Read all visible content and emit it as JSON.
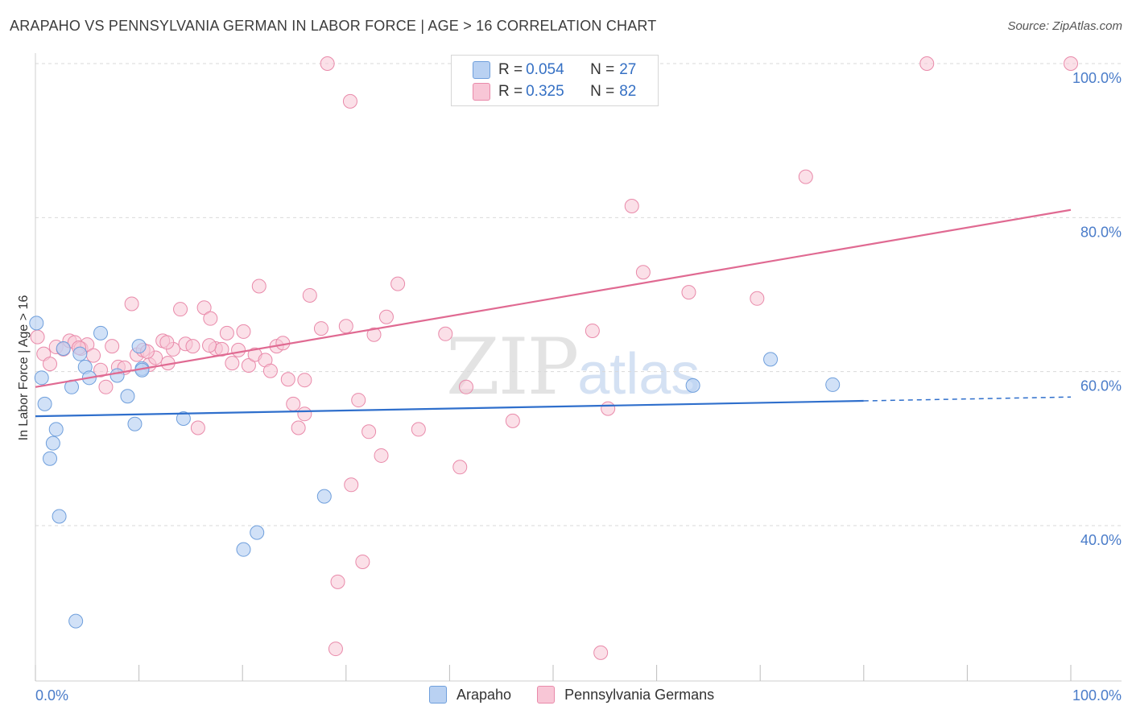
{
  "header": {
    "title": "ARAPAHO VS PENNSYLVANIA GERMAN IN LABOR FORCE | AGE > 16 CORRELATION CHART",
    "source": "Source: ZipAtlas.com"
  },
  "legend_box": {
    "rows": [
      {
        "r_label": "R = ",
        "r_value": "0.054",
        "n_label": "N = ",
        "n_value": "27"
      },
      {
        "r_label": "R = ",
        "r_value": "0.325",
        "n_label": "N = ",
        "n_value": "82"
      }
    ]
  },
  "watermark": {
    "zip": "ZIP",
    "atlas": "atlas"
  },
  "colors": {
    "arapaho_fill": "#b9d1f2",
    "arapaho_stroke": "#6f9fdc",
    "arapaho_line": "#2f6fcc",
    "pg_fill": "#f8c6d6",
    "pg_stroke": "#e98aaa",
    "pg_line": "#e06a92",
    "tick": "#4a7cc9",
    "grid": "#d9d9d9"
  },
  "chart_data": {
    "type": "scatter",
    "title": "ARAPAHO VS PENNSYLVANIA GERMAN IN LABOR FORCE | AGE > 16 CORRELATION CHART",
    "xlabel": "",
    "ylabel": "In Labor Force | Age > 16",
    "xlim": [
      0,
      100
    ],
    "ylim": [
      22,
      101
    ],
    "x_tick_labels": [
      "0.0%",
      "100.0%"
    ],
    "y_ticks": [
      40,
      60,
      80,
      100
    ],
    "y_tick_labels": [
      "40.0%",
      "60.0%",
      "80.0%",
      "100.0%"
    ],
    "grid": true,
    "legend_position": "bottom",
    "series": [
      {
        "name": "Arapaho",
        "r": 0.054,
        "n": 27,
        "trend": {
          "x0": 0,
          "y0": 54.2,
          "x1": 80,
          "y1": 56.2,
          "dashed_to_x": 100,
          "dashed_to_y": 56.7
        },
        "points": [
          [
            0.1,
            66.3
          ],
          [
            0.6,
            59.2
          ],
          [
            0.9,
            55.8
          ],
          [
            1.4,
            48.7
          ],
          [
            1.7,
            50.7
          ],
          [
            2.0,
            52.5
          ],
          [
            2.3,
            41.2
          ],
          [
            2.7,
            63.0
          ],
          [
            3.5,
            58.0
          ],
          [
            3.9,
            27.6
          ],
          [
            4.3,
            62.3
          ],
          [
            4.8,
            60.6
          ],
          [
            5.2,
            59.2
          ],
          [
            6.3,
            65.0
          ],
          [
            7.9,
            59.5
          ],
          [
            8.9,
            56.8
          ],
          [
            9.6,
            53.2
          ],
          [
            10.0,
            63.3
          ],
          [
            10.3,
            60.4
          ],
          [
            14.3,
            53.9
          ],
          [
            20.1,
            36.9
          ],
          [
            21.4,
            39.1
          ],
          [
            27.9,
            43.8
          ],
          [
            63.5,
            58.2
          ],
          [
            71.0,
            61.6
          ],
          [
            77.0,
            58.3
          ],
          [
            10.3,
            60.2
          ]
        ]
      },
      {
        "name": "Pennsylvania Germans",
        "r": 0.325,
        "n": 82,
        "trend": {
          "x0": 0,
          "y0": 58.0,
          "x1": 100,
          "y1": 81.0
        },
        "points": [
          [
            0.2,
            64.5
          ],
          [
            0.8,
            62.3
          ],
          [
            1.4,
            61.0
          ],
          [
            2.0,
            63.2
          ],
          [
            2.7,
            62.9
          ],
          [
            3.3,
            64.0
          ],
          [
            3.8,
            63.8
          ],
          [
            4.4,
            63.0
          ],
          [
            5.0,
            63.5
          ],
          [
            5.6,
            62.1
          ],
          [
            6.3,
            60.2
          ],
          [
            6.8,
            58.0
          ],
          [
            7.4,
            63.3
          ],
          [
            8.0,
            60.6
          ],
          [
            8.6,
            60.5
          ],
          [
            9.3,
            68.8
          ],
          [
            9.8,
            62.2
          ],
          [
            10.4,
            62.8
          ],
          [
            11.0,
            60.9
          ],
          [
            11.6,
            61.8
          ],
          [
            12.3,
            64.0
          ],
          [
            12.8,
            61.1
          ],
          [
            13.3,
            62.9
          ],
          [
            14.0,
            68.1
          ],
          [
            14.5,
            63.6
          ],
          [
            15.2,
            63.3
          ],
          [
            15.7,
            52.7
          ],
          [
            16.3,
            68.3
          ],
          [
            16.9,
            66.9
          ],
          [
            17.4,
            63.0
          ],
          [
            18.0,
            62.9
          ],
          [
            18.5,
            65.0
          ],
          [
            19.0,
            61.1
          ],
          [
            19.6,
            62.8
          ],
          [
            20.1,
            65.2
          ],
          [
            20.6,
            60.8
          ],
          [
            21.2,
            62.2
          ],
          [
            21.6,
            71.1
          ],
          [
            22.2,
            61.5
          ],
          [
            22.7,
            60.1
          ],
          [
            23.3,
            63.3
          ],
          [
            23.9,
            63.7
          ],
          [
            24.4,
            59.0
          ],
          [
            24.9,
            55.8
          ],
          [
            25.4,
            52.7
          ],
          [
            26.0,
            54.5
          ],
          [
            26.5,
            69.9
          ],
          [
            27.6,
            65.6
          ],
          [
            28.2,
            100.0
          ],
          [
            29.0,
            24.0
          ],
          [
            29.2,
            32.7
          ],
          [
            30.0,
            65.9
          ],
          [
            30.4,
            95.1
          ],
          [
            30.5,
            45.3
          ],
          [
            31.2,
            56.3
          ],
          [
            31.6,
            35.3
          ],
          [
            32.2,
            52.2
          ],
          [
            32.7,
            64.8
          ],
          [
            33.4,
            49.1
          ],
          [
            33.9,
            67.1
          ],
          [
            35.0,
            71.4
          ],
          [
            37.0,
            52.5
          ],
          [
            39.6,
            64.9
          ],
          [
            41.0,
            47.6
          ],
          [
            41.6,
            58.0
          ],
          [
            46.1,
            53.6
          ],
          [
            47.1,
            95.5
          ],
          [
            53.8,
            65.3
          ],
          [
            54.6,
            23.5
          ],
          [
            55.3,
            55.2
          ],
          [
            57.6,
            81.5
          ],
          [
            58.7,
            72.9
          ],
          [
            63.1,
            70.3
          ],
          [
            69.7,
            69.5
          ],
          [
            74.4,
            85.3
          ],
          [
            86.1,
            100.0
          ],
          [
            100.0,
            100.0
          ],
          [
            10.8,
            62.6
          ],
          [
            12.7,
            63.8
          ],
          [
            4.2,
            63.1
          ],
          [
            16.8,
            63.4
          ],
          [
            26.0,
            58.9
          ]
        ]
      }
    ]
  }
}
